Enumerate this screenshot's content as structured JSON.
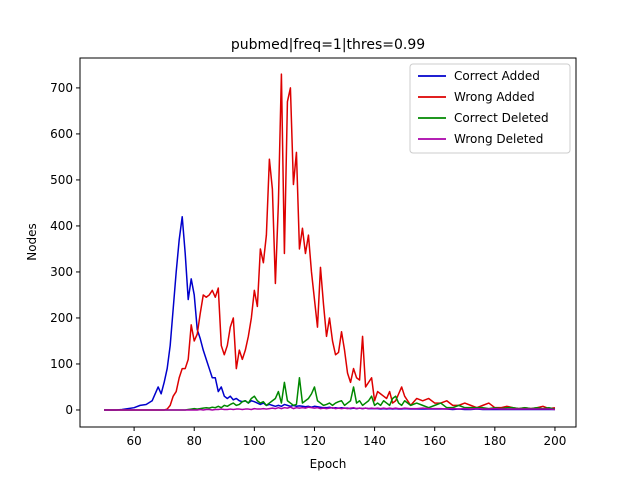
{
  "chart_data": {
    "type": "line",
    "title": "pubmed|freq=1|thres=0.99",
    "xlabel": "Epoch",
    "ylabel": "Nodes",
    "xlim": [
      42,
      207
    ],
    "ylim": [
      -37,
      765
    ],
    "xticks": [
      60,
      80,
      100,
      120,
      140,
      160,
      180,
      200
    ],
    "yticks": [
      0,
      100,
      200,
      300,
      400,
      500,
      600,
      700
    ],
    "grid": false,
    "legend_position": "top-right",
    "x": [
      50,
      52,
      54,
      56,
      58,
      60,
      62,
      64,
      66,
      68,
      69,
      70,
      71,
      72,
      73,
      74,
      75,
      76,
      77,
      78,
      79,
      80,
      81,
      82,
      83,
      84,
      85,
      86,
      87,
      88,
      89,
      90,
      91,
      92,
      93,
      94,
      95,
      96,
      97,
      98,
      99,
      100,
      101,
      102,
      103,
      104,
      105,
      106,
      107,
      108,
      109,
      110,
      111,
      112,
      113,
      114,
      115,
      116,
      117,
      118,
      119,
      120,
      121,
      122,
      123,
      124,
      125,
      126,
      127,
      128,
      129,
      130,
      131,
      132,
      133,
      134,
      135,
      136,
      137,
      138,
      139,
      140,
      141,
      142,
      143,
      144,
      145,
      146,
      147,
      148,
      149,
      150,
      152,
      154,
      156,
      158,
      160,
      162,
      164,
      166,
      168,
      170,
      172,
      174,
      176,
      178,
      180,
      182,
      184,
      186,
      188,
      190,
      192,
      194,
      196,
      198,
      200
    ],
    "series": [
      {
        "name": "Correct Added",
        "color": "#0000cc",
        "values": [
          0,
          0,
          0,
          1,
          3,
          5,
          10,
          12,
          20,
          50,
          35,
          60,
          90,
          140,
          220,
          300,
          370,
          420,
          340,
          240,
          285,
          250,
          175,
          155,
          130,
          110,
          90,
          70,
          70,
          40,
          50,
          30,
          25,
          30,
          22,
          25,
          20,
          18,
          20,
          15,
          20,
          18,
          15,
          12,
          15,
          10,
          12,
          10,
          8,
          10,
          8,
          12,
          10,
          8,
          10,
          8,
          9,
          8,
          7,
          8,
          6,
          8,
          7,
          6,
          5,
          5,
          6,
          4,
          5,
          4,
          5,
          4,
          4,
          3,
          4,
          3,
          4,
          3,
          4,
          3,
          3,
          3,
          3,
          2,
          3,
          2,
          3,
          2,
          3,
          2,
          2,
          3,
          2,
          2,
          2,
          2,
          2,
          2,
          2,
          1,
          2,
          1,
          1,
          2,
          1,
          1,
          1,
          1,
          1,
          1,
          1,
          1,
          1,
          1,
          1,
          1,
          1
        ]
      },
      {
        "name": "Wrong Added",
        "color": "#dd0000",
        "values": [
          0,
          0,
          0,
          0,
          0,
          0,
          0,
          0,
          0,
          0,
          0,
          0,
          2,
          10,
          30,
          40,
          70,
          90,
          90,
          110,
          185,
          150,
          165,
          210,
          250,
          245,
          250,
          260,
          245,
          265,
          140,
          120,
          140,
          180,
          200,
          90,
          130,
          110,
          130,
          160,
          200,
          260,
          225,
          350,
          320,
          380,
          545,
          480,
          275,
          450,
          730,
          340,
          670,
          700,
          490,
          560,
          350,
          395,
          340,
          380,
          300,
          240,
          180,
          310,
          230,
          160,
          200,
          150,
          120,
          125,
          170,
          130,
          80,
          60,
          90,
          70,
          65,
          160,
          50,
          60,
          70,
          20,
          40,
          35,
          30,
          25,
          40,
          15,
          20,
          35,
          50,
          30,
          10,
          25,
          20,
          25,
          15,
          15,
          20,
          10,
          10,
          15,
          10,
          5,
          10,
          15,
          5,
          5,
          8,
          5,
          3,
          5,
          3,
          5,
          8,
          3,
          5
        ]
      },
      {
        "name": "Correct Deleted",
        "color": "#008800",
        "values": [
          0,
          0,
          0,
          0,
          0,
          0,
          0,
          0,
          0,
          0,
          0,
          0,
          0,
          0,
          0,
          0,
          0,
          0,
          0,
          1,
          2,
          3,
          2,
          3,
          4,
          5,
          4,
          6,
          5,
          8,
          5,
          10,
          8,
          12,
          15,
          10,
          12,
          18,
          20,
          15,
          25,
          30,
          20,
          15,
          18,
          10,
          15,
          20,
          25,
          40,
          15,
          60,
          20,
          15,
          10,
          12,
          70,
          15,
          20,
          25,
          35,
          50,
          20,
          15,
          10,
          12,
          15,
          10,
          15,
          18,
          20,
          10,
          15,
          20,
          50,
          15,
          20,
          10,
          15,
          20,
          30,
          10,
          15,
          10,
          20,
          15,
          10,
          25,
          30,
          15,
          10,
          20,
          10,
          15,
          10,
          5,
          10,
          15,
          5,
          5,
          10,
          5,
          5,
          5,
          5,
          3,
          5,
          3,
          5,
          5,
          3,
          5,
          3,
          5,
          3,
          5,
          2
        ]
      },
      {
        "name": "Wrong Deleted",
        "color": "#aa00aa",
        "values": [
          0,
          0,
          0,
          0,
          0,
          0,
          0,
          0,
          0,
          0,
          0,
          0,
          0,
          0,
          0,
          0,
          0,
          0,
          0,
          0,
          0,
          0,
          0,
          1,
          0,
          1,
          1,
          0,
          1,
          1,
          2,
          1,
          1,
          2,
          1,
          2,
          2,
          1,
          2,
          2,
          1,
          3,
          2,
          2,
          3,
          2,
          3,
          4,
          3,
          5,
          3,
          5,
          4,
          6,
          3,
          5,
          4,
          5,
          4,
          6,
          5,
          4,
          5,
          3,
          4,
          3,
          4,
          5,
          3,
          4,
          3,
          4,
          3,
          4,
          5,
          3,
          4,
          3,
          4,
          3,
          4,
          3,
          4,
          3,
          4,
          3,
          4,
          3,
          4,
          3,
          3,
          4,
          3,
          3,
          4,
          3,
          3,
          3,
          2,
          3,
          2,
          3,
          2,
          3,
          2,
          2,
          3,
          2,
          2,
          2,
          2,
          2,
          2,
          2,
          2,
          2,
          1
        ]
      }
    ]
  }
}
